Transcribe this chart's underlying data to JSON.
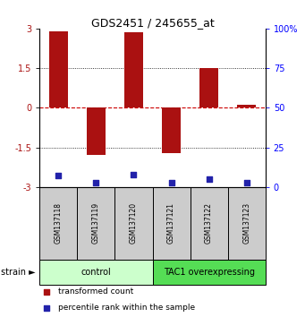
{
  "title": "GDS2451 / 245655_at",
  "samples": [
    "GSM137118",
    "GSM137119",
    "GSM137120",
    "GSM137121",
    "GSM137122",
    "GSM137123"
  ],
  "bar_values": [
    2.9,
    -1.8,
    2.85,
    -1.7,
    1.5,
    0.1
  ],
  "percentile_values": [
    7,
    3,
    8,
    3,
    5,
    3
  ],
  "bar_color": "#AA1111",
  "dot_color": "#2222AA",
  "ylim": [
    -3,
    3
  ],
  "yticks": [
    -3,
    -1.5,
    0,
    1.5,
    3
  ],
  "y2ticks": [
    0,
    25,
    50,
    75,
    100
  ],
  "groups": [
    {
      "label": "control",
      "start": 0,
      "end": 3,
      "color": "#ccffcc"
    },
    {
      "label": "TAC1 overexpressing",
      "start": 3,
      "end": 6,
      "color": "#55dd55"
    }
  ],
  "group_label": "strain",
  "legend_items": [
    {
      "color": "#AA1111",
      "label": "transformed count"
    },
    {
      "color": "#2222AA",
      "label": "percentile rank within the sample"
    }
  ],
  "hline_color": "#cc0000",
  "sample_box_color": "#cccccc",
  "bar_width": 0.5
}
